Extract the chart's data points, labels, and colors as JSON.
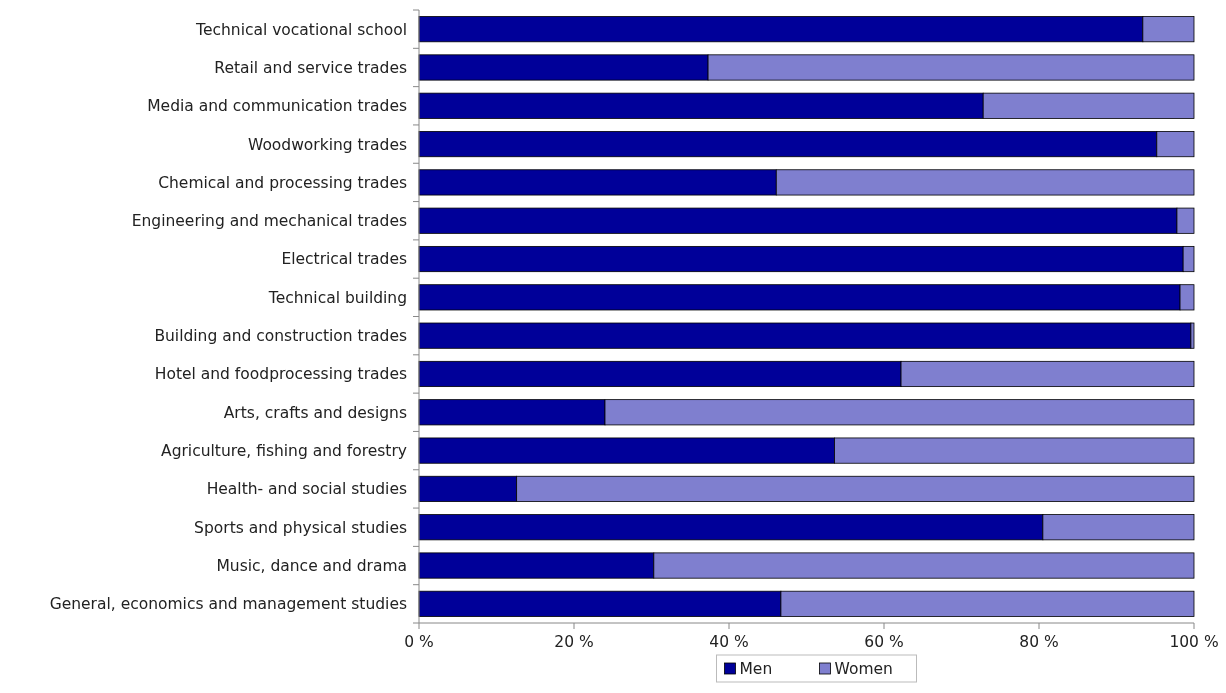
{
  "chart_data": {
    "type": "bar",
    "orientation": "horizontal",
    "stacked": true,
    "categories": [
      "Technical vocational school",
      "Retail and service trades",
      "Media and communication trades",
      "Woodworking trades",
      "Chemical and processing trades",
      "Engineering and mechanical trades",
      "Electrical trades",
      "Technical building",
      "Building and construction trades",
      "Hotel and foodprocessing trades",
      "Arts, crafts and designs",
      "Agriculture, fishing and forestry",
      "Health- and social studies",
      "Sports and physical studies",
      "Music, dance and drama",
      "General, economics and management studies"
    ],
    "series": [
      {
        "name": "Men",
        "color": "#000099",
        "values": [
          93.4,
          37.3,
          72.8,
          95.2,
          46.1,
          97.8,
          98.6,
          98.2,
          99.6,
          62.2,
          24.0,
          53.6,
          12.6,
          80.5,
          30.3,
          46.7
        ]
      },
      {
        "name": "Women",
        "color": "#7f7fcf",
        "values": [
          6.6,
          62.7,
          27.2,
          4.8,
          53.9,
          2.2,
          1.4,
          1.8,
          0.4,
          37.8,
          76.0,
          46.4,
          87.4,
          19.5,
          69.7,
          53.3
        ]
      }
    ],
    "xlim": [
      0,
      100
    ],
    "xticks": [
      {
        "value": 0,
        "label": "0 %"
      },
      {
        "value": 20,
        "label": "20 %"
      },
      {
        "value": 40,
        "label": "40 %"
      },
      {
        "value": 60,
        "label": "60 %"
      },
      {
        "value": 80,
        "label": "80 %"
      },
      {
        "value": 100,
        "label": "100 %"
      }
    ],
    "legend": "bottom"
  }
}
